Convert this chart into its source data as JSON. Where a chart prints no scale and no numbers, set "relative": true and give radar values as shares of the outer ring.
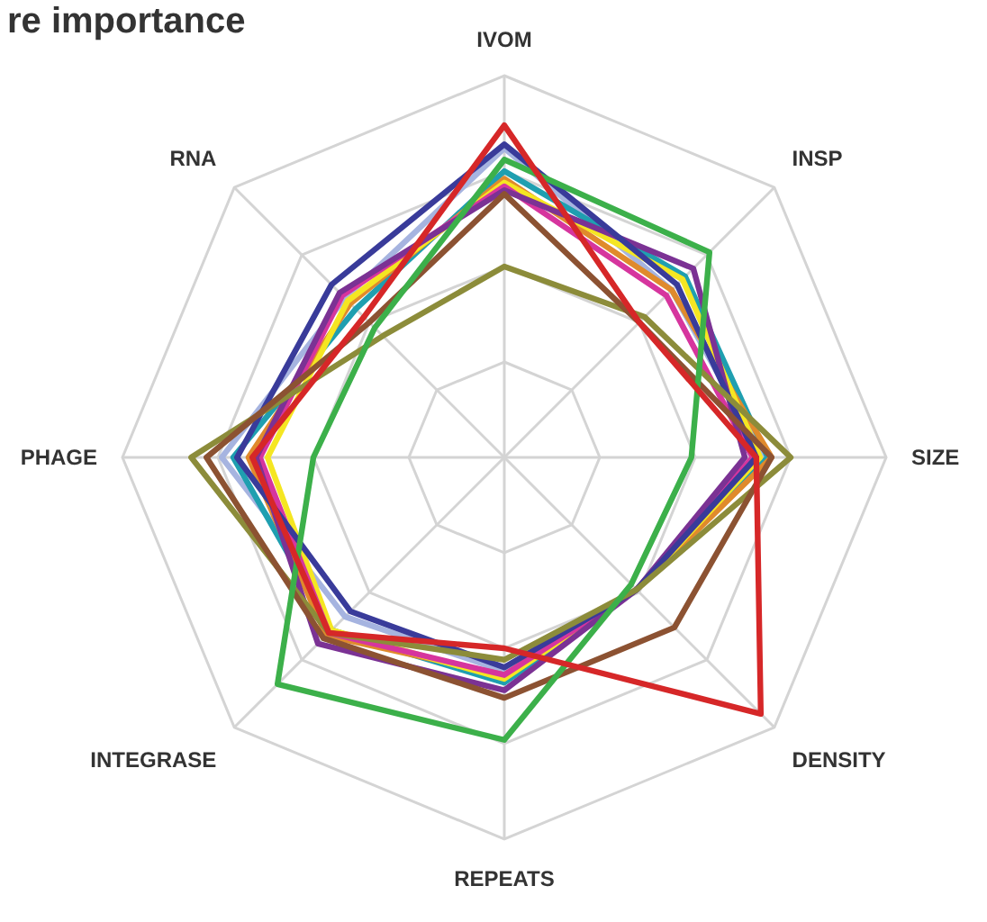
{
  "chart_data": {
    "type": "radar",
    "title": "re importance",
    "relative": true,
    "categories": [
      "IVOM",
      "INSP",
      "SIZE",
      "DENSITY",
      "REPEATS",
      "INTEGRASE",
      "PHAGE",
      "RNA"
    ],
    "grid": true,
    "legend": false,
    "marker": "none",
    "line_style": "solid",
    "series": [
      {
        "color": "#a6b4e0",
        "values": [
          0.81,
          0.62,
          0.68,
          0.49,
          0.56,
          0.59,
          0.74,
          0.59
        ]
      },
      {
        "color": "#1f9fb0",
        "values": [
          0.75,
          0.67,
          0.69,
          0.49,
          0.59,
          0.64,
          0.71,
          0.55
        ]
      },
      {
        "color": "#e08a2c",
        "values": [
          0.73,
          0.62,
          0.7,
          0.49,
          0.57,
          0.66,
          0.67,
          0.57
        ]
      },
      {
        "color": "#f5e622",
        "values": [
          0.72,
          0.66,
          0.67,
          0.49,
          0.58,
          0.64,
          0.62,
          0.58
        ]
      },
      {
        "color": "#d6359e",
        "values": [
          0.71,
          0.6,
          0.65,
          0.49,
          0.57,
          0.65,
          0.64,
          0.6
        ]
      },
      {
        "color": "#7b3294",
        "values": [
          0.7,
          0.7,
          0.63,
          0.49,
          0.61,
          0.69,
          0.65,
          0.61
        ]
      },
      {
        "color": "#393b9a",
        "values": [
          0.82,
          0.64,
          0.66,
          0.49,
          0.55,
          0.57,
          0.7,
          0.64
        ]
      },
      {
        "color": "#8c8c3a",
        "values": [
          0.5,
          0.52,
          0.75,
          0.49,
          0.53,
          0.65,
          0.82,
          0.45
        ]
      },
      {
        "color": "#8c5232",
        "values": [
          0.69,
          0.5,
          0.7,
          0.63,
          0.63,
          0.67,
          0.78,
          0.5
        ]
      },
      {
        "color": "#3cb04a",
        "values": [
          0.78,
          0.76,
          0.49,
          0.47,
          0.74,
          0.84,
          0.5,
          0.48
        ]
      },
      {
        "color": "#d62728",
        "values": [
          0.87,
          0.5,
          0.66,
          0.95,
          0.5,
          0.65,
          0.66,
          0.52
        ]
      }
    ]
  }
}
